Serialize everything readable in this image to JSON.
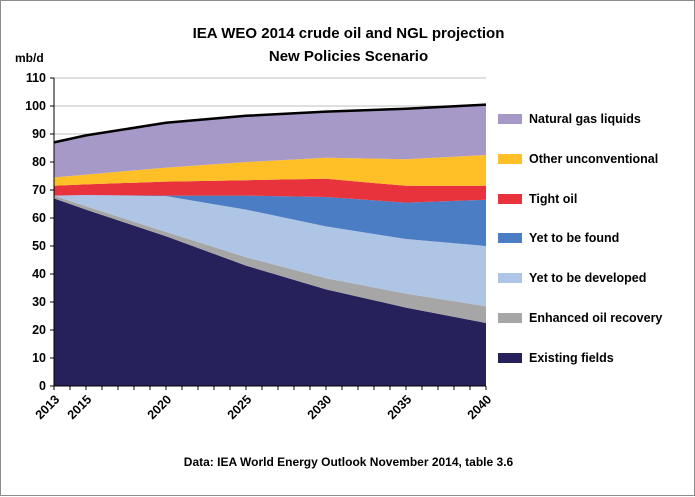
{
  "title_line1": "IEA WEO 2014  crude oil and NGL projection",
  "title_line2": "New Policies Scenario",
  "caption": "Data: IEA World Energy Outlook November 2014, table 3.6",
  "chart_data": {
    "type": "area",
    "stacked": true,
    "ylabel": "mb/d",
    "ylim": [
      0,
      110
    ],
    "yticks": [
      0,
      10,
      20,
      30,
      40,
      50,
      60,
      70,
      80,
      90,
      100,
      110
    ],
    "xlim": [
      2013,
      2040
    ],
    "xticks": [
      2013,
      2015,
      2020,
      2025,
      2030,
      2035,
      2040
    ],
    "grid": "horizontal",
    "legend_position": "right",
    "x": [
      2013,
      2015,
      2020,
      2025,
      2030,
      2035,
      2040
    ],
    "series": [
      {
        "name": "Existing fields",
        "color": "#27215b",
        "values": [
          67,
          63,
          53.5,
          43,
          34.5,
          28,
          22.5
        ]
      },
      {
        "name": "Enhanced oil recovery",
        "color": "#a6a6a6",
        "values": [
          1,
          1.2,
          1.5,
          3,
          4,
          5,
          6
        ]
      },
      {
        "name": "Yet to be developed",
        "color": "#aec5e5",
        "values": [
          0,
          4,
          12.8,
          17,
          18.5,
          19.5,
          21.5
        ]
      },
      {
        "name": "Yet to be found",
        "color": "#4a7dc4",
        "values": [
          0,
          0,
          0.2,
          5,
          10.5,
          13,
          16.5
        ]
      },
      {
        "name": "Tight oil",
        "color": "#e8323c",
        "values": [
          3.5,
          3.8,
          5,
          5.5,
          6.5,
          6,
          5
        ]
      },
      {
        "name": "Other unconventional",
        "color": "#ffbf27",
        "values": [
          3,
          3.5,
          5,
          6.5,
          7.5,
          9.5,
          11
        ]
      },
      {
        "name": "Natural gas liquids",
        "color": "#a699c8",
        "values": [
          12.5,
          14,
          16,
          16.5,
          16.5,
          18,
          18
        ]
      }
    ],
    "total_line_color": "#000000"
  }
}
